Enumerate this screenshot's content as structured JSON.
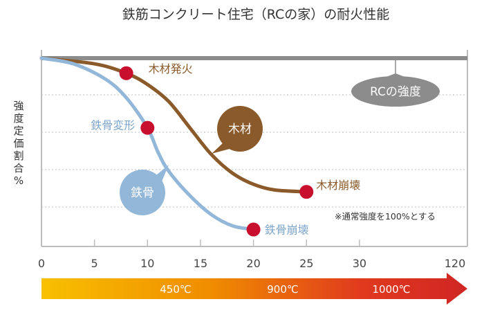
{
  "chart_data": {
    "type": "line",
    "title": "鉄筋コンクリート住宅（RCの家）の耐火性能",
    "ylabel": "強度定価割合%",
    "x_ticks": [
      "0",
      "5",
      "10",
      "15",
      "20",
      "25",
      "30",
      "120"
    ],
    "note": "※通常強度を100%とする",
    "series": [
      {
        "name": "RCの強度",
        "color": "#8c8c8c",
        "x": [
          0,
          5,
          10,
          15,
          20,
          25,
          30,
          120
        ],
        "y": [
          100,
          100,
          100,
          100,
          100,
          100,
          100,
          100
        ]
      },
      {
        "name": "木材",
        "color": "#8b5a2b",
        "x": [
          0,
          5,
          8,
          10,
          12,
          14,
          16,
          18,
          20,
          22,
          25
        ],
        "y": [
          100,
          97,
          92,
          86,
          77,
          63,
          49,
          39,
          33,
          30,
          29
        ]
      },
      {
        "name": "鉄骨",
        "color": "#93b7d9",
        "x": [
          0,
          3,
          6,
          8,
          10,
          11,
          12,
          14,
          16,
          18,
          20
        ],
        "y": [
          100,
          97,
          89,
          79,
          63,
          50,
          40,
          27,
          17,
          11,
          9
        ]
      }
    ],
    "points": [
      {
        "label": "木材発火",
        "series": "木材",
        "x": 8,
        "y": 92
      },
      {
        "label": "木材崩壊",
        "series": "木材",
        "x": 25,
        "y": 29
      },
      {
        "label": "鉄骨変形",
        "series": "鉄骨",
        "x": 10,
        "y": 63
      },
      {
        "label": "鉄骨崩壊",
        "series": "鉄骨",
        "x": 20,
        "y": 9
      }
    ],
    "grid": "horizontal-dotted",
    "temperature_bar": {
      "labels": [
        "450℃",
        "900℃",
        "1000℃"
      ],
      "colors": [
        "#f8c000",
        "#f08c00",
        "#e03a1e",
        "#cf2623"
      ]
    },
    "marker_color": "#c8102e"
  }
}
